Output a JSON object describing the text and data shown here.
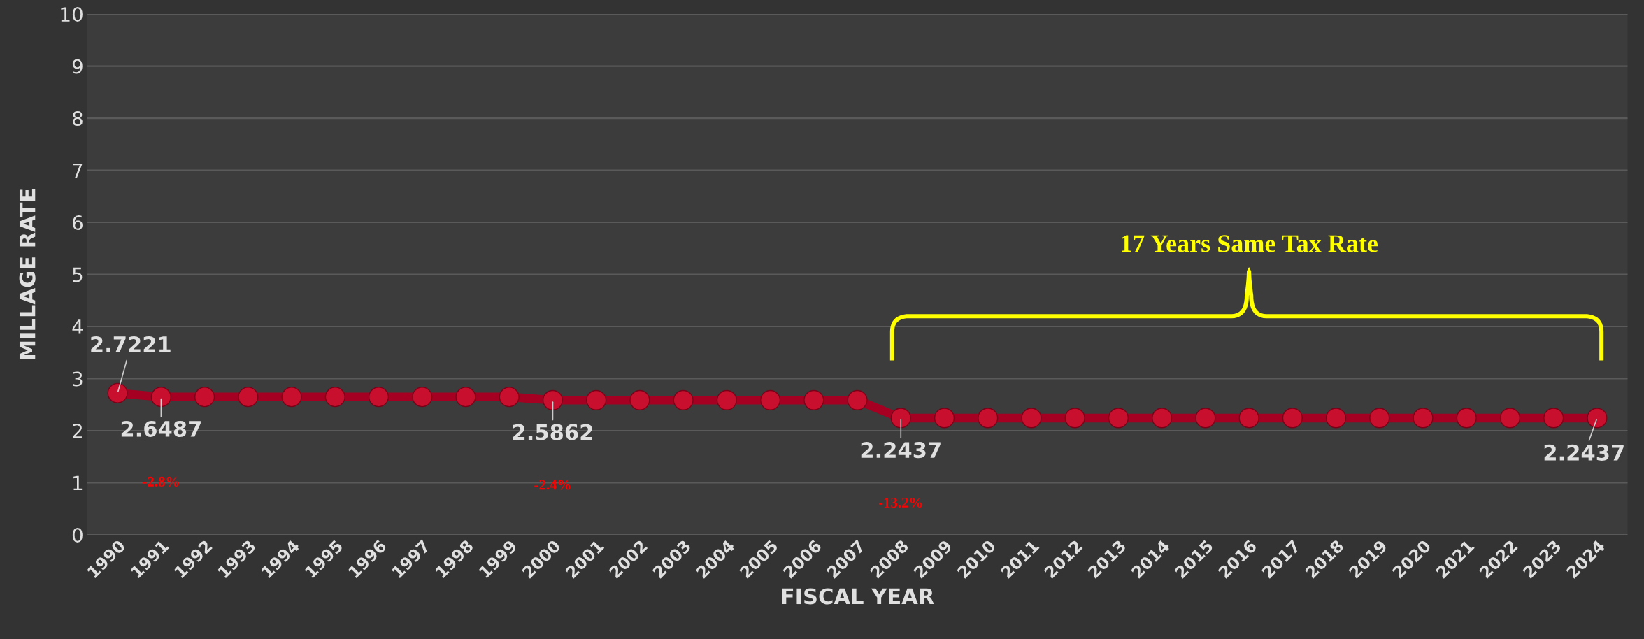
{
  "chart_data": {
    "type": "line",
    "xlabel": "FISCAL YEAR",
    "ylabel": "MILLAGE RATE",
    "categories": [
      "1990",
      "1991",
      "1992",
      "1993",
      "1994",
      "1995",
      "1996",
      "1997",
      "1998",
      "1999",
      "2000",
      "2001",
      "2002",
      "2003",
      "2004",
      "2005",
      "2006",
      "2007",
      "2008",
      "2009",
      "2010",
      "2011",
      "2012",
      "2013",
      "2014",
      "2015",
      "2016",
      "2017",
      "2018",
      "2019",
      "2020",
      "2021",
      "2022",
      "2023",
      "2024"
    ],
    "series": [
      {
        "color": "#a50021",
        "values": [
          2.7221,
          2.6487,
          2.6487,
          2.6487,
          2.6487,
          2.6487,
          2.6487,
          2.6487,
          2.6487,
          2.6487,
          2.5862,
          2.5862,
          2.5862,
          2.5862,
          2.5862,
          2.5862,
          2.5862,
          2.5862,
          2.2437,
          2.2437,
          2.2437,
          2.2437,
          2.2437,
          2.2437,
          2.2437,
          2.2437,
          2.2437,
          2.2437,
          2.2437,
          2.2437,
          2.2437,
          2.2437,
          2.2437,
          2.2437,
          2.2437
        ],
        "value_labels": [
          "2.7221",
          "2.6487",
          null,
          null,
          null,
          null,
          null,
          null,
          null,
          null,
          "2.5862",
          null,
          null,
          null,
          null,
          null,
          null,
          null,
          "2.2437",
          null,
          null,
          null,
          null,
          null,
          null,
          null,
          null,
          null,
          null,
          null,
          null,
          null,
          null,
          null,
          "2.2437"
        ]
      }
    ],
    "ylim": [
      0,
      10
    ],
    "yticks": [
      0,
      1,
      2,
      3,
      4,
      5,
      6,
      7,
      8,
      9,
      10
    ],
    "grid": "y",
    "marker": "circle",
    "line_style": "solid",
    "legend": false,
    "annotations": [
      "-2.8%",
      "-2.4%",
      "-13.2%",
      "17 Years Same Tax Rate"
    ]
  }
}
